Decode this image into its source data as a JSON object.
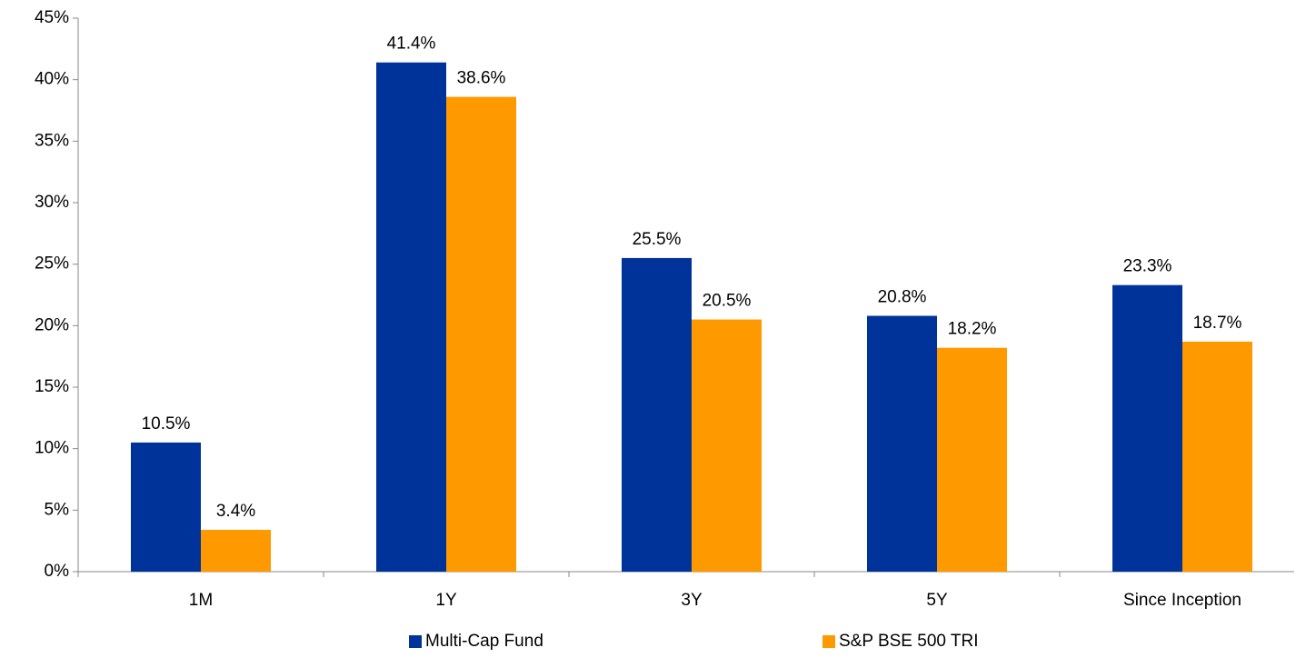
{
  "chart_data": {
    "type": "bar",
    "categories": [
      "1M",
      "1Y",
      "3Y",
      "5Y",
      "Since Inception"
    ],
    "series": [
      {
        "name": "Multi-Cap Fund",
        "color": "#003399",
        "values": [
          10.5,
          41.4,
          25.5,
          20.8,
          23.3
        ],
        "value_labels": [
          "10.5%",
          "41.4%",
          "25.5%",
          "20.8%",
          "23.3%"
        ]
      },
      {
        "name": "S&P BSE 500 TRI",
        "color": "#ff9900",
        "values": [
          3.4,
          38.6,
          20.5,
          18.2,
          18.7
        ],
        "value_labels": [
          "3.4%",
          "38.6%",
          "20.5%",
          "18.2%",
          "18.7%"
        ]
      }
    ],
    "ylim": [
      0,
      45
    ],
    "yticks": [
      {
        "value": 0,
        "label": "0%"
      },
      {
        "value": 5,
        "label": "5%"
      },
      {
        "value": 10,
        "label": "10%"
      },
      {
        "value": 15,
        "label": "15%"
      },
      {
        "value": 20,
        "label": "20%"
      },
      {
        "value": 25,
        "label": "25%"
      },
      {
        "value": 30,
        "label": "30%"
      },
      {
        "value": 35,
        "label": "35%"
      },
      {
        "value": 40,
        "label": "40%"
      },
      {
        "value": 45,
        "label": "45%"
      }
    ],
    "grid": false,
    "legend": "bottom"
  }
}
